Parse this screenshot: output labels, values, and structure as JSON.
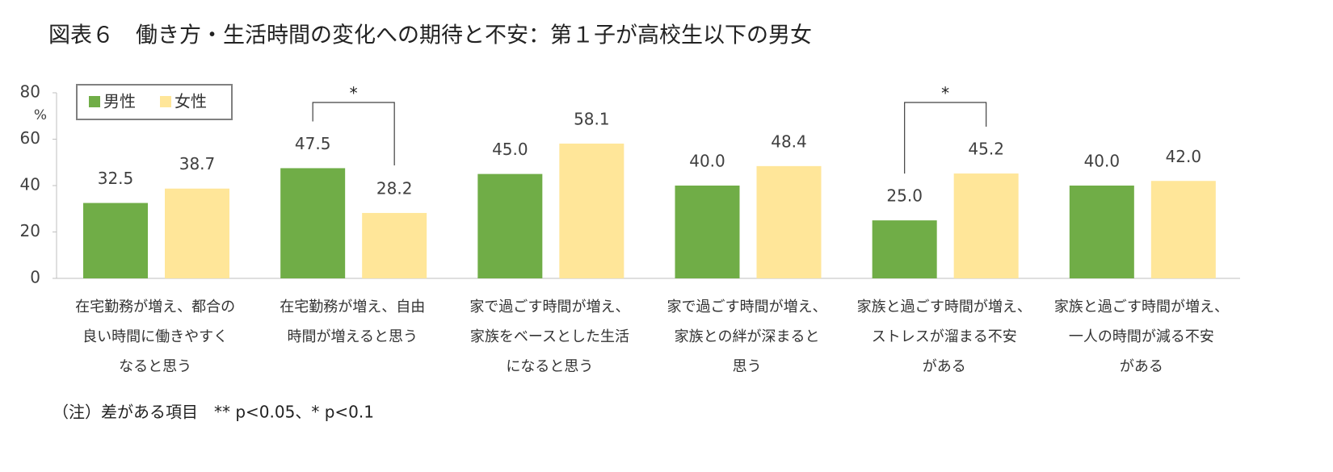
{
  "chart_data": {
    "type": "bar",
    "title": "図表６　働き方・生活時間の変化への期待と不安：第１子が高校生以下の男女",
    "y_unit": "%",
    "categories": [
      [
        "在宅勤務が増え、都合の",
        "良い時間に働きやすく",
        "なると思う"
      ],
      [
        "在宅勤務が増え、自由",
        "時間が増えると思う"
      ],
      [
        "家で過ごす時間が増え、",
        "家族をベースとした生活",
        "になると思う"
      ],
      [
        "家で過ごす時間が増え、",
        "家族との絆が深まると",
        "思う"
      ],
      [
        "家族と過ごす時間が増え、",
        "ストレスが溜まる不安",
        "がある"
      ],
      [
        "家族と過ごす時間が増え、",
        "一人の時間が減る不安",
        "がある"
      ]
    ],
    "series": [
      {
        "name": "男性",
        "color": "#70ad47",
        "values": [
          32.5,
          47.5,
          45.0,
          40.0,
          25.0,
          40.0
        ],
        "value_labels": [
          "32.5",
          "47.5",
          "45.0",
          "40.0",
          "25.0",
          "40.0"
        ]
      },
      {
        "name": "女性",
        "color": "#ffe699",
        "values": [
          38.7,
          28.2,
          58.1,
          48.4,
          45.2,
          42.0
        ],
        "value_labels": [
          "38.7",
          "28.2",
          "58.1",
          "48.4",
          "45.2",
          "42.0"
        ]
      }
    ],
    "significance": [
      null,
      "*",
      null,
      null,
      "*",
      null
    ],
    "ylim": [
      0,
      80
    ],
    "yticks": [
      0,
      20,
      40,
      60,
      80
    ],
    "legend": "top-left",
    "note": "（注）差がある項目　** p<0.05、* p<0.1"
  }
}
